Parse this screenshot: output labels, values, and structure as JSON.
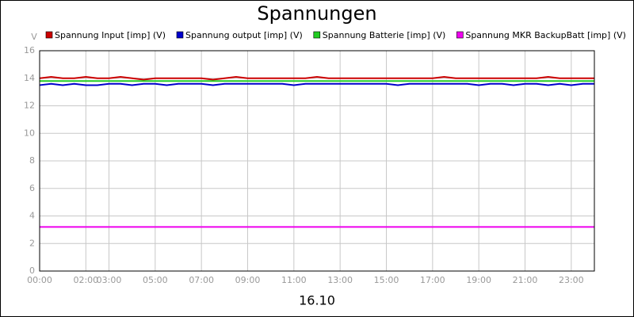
{
  "chart_data": {
    "type": "line",
    "title": "Spannungen",
    "xlabel": "16.10",
    "ylabel": "V",
    "x": [
      0,
      0.5,
      1,
      1.5,
      2,
      2.5,
      3,
      3.5,
      4,
      4.5,
      5,
      5.5,
      6,
      6.5,
      7,
      7.5,
      8,
      8.5,
      9,
      9.5,
      10,
      10.5,
      11,
      11.5,
      12,
      12.5,
      13,
      13.5,
      14,
      14.5,
      15,
      15.5,
      16,
      16.5,
      17,
      17.5,
      18,
      18.5,
      19,
      19.5,
      20,
      20.5,
      21,
      21.5,
      22,
      22.5,
      23,
      23.5,
      24
    ],
    "xlim": [
      0,
      24
    ],
    "xticks": [
      {
        "value": 0,
        "label": "00:00"
      },
      {
        "value": 2,
        "label": "02:00"
      },
      {
        "value": 3,
        "label": "03:00"
      },
      {
        "value": 5,
        "label": "05:00"
      },
      {
        "value": 7,
        "label": "07:00"
      },
      {
        "value": 9,
        "label": "09:00"
      },
      {
        "value": 11,
        "label": "11:00"
      },
      {
        "value": 13,
        "label": "13:00"
      },
      {
        "value": 15,
        "label": "15:00"
      },
      {
        "value": 17,
        "label": "17:00"
      },
      {
        "value": 19,
        "label": "19:00"
      },
      {
        "value": 21,
        "label": "21:00"
      },
      {
        "value": 23,
        "label": "23:00"
      }
    ],
    "ylim": [
      0,
      16
    ],
    "yticks": [
      0,
      2,
      4,
      6,
      8,
      10,
      12,
      14,
      16
    ],
    "grid": true,
    "series": [
      {
        "name": "Spannung Input [imp] (V)",
        "color": "#cc0000",
        "values": [
          14.0,
          14.1,
          14.0,
          14.0,
          14.1,
          14.0,
          14.0,
          14.1,
          14.0,
          13.9,
          14.0,
          14.0,
          14.0,
          14.0,
          14.0,
          13.9,
          14.0,
          14.1,
          14.0,
          14.0,
          14.0,
          14.0,
          14.0,
          14.0,
          14.1,
          14.0,
          14.0,
          14.0,
          14.0,
          14.0,
          14.0,
          14.0,
          14.0,
          14.0,
          14.0,
          14.1,
          14.0,
          14.0,
          14.0,
          14.0,
          14.0,
          14.0,
          14.0,
          14.0,
          14.1,
          14.0,
          14.0,
          14.0,
          14.0
        ]
      },
      {
        "name": "Spannung output [imp] (V)",
        "color": "#0000cc",
        "values": [
          13.5,
          13.6,
          13.5,
          13.6,
          13.5,
          13.5,
          13.6,
          13.6,
          13.5,
          13.6,
          13.6,
          13.5,
          13.6,
          13.6,
          13.6,
          13.5,
          13.6,
          13.6,
          13.6,
          13.6,
          13.6,
          13.6,
          13.5,
          13.6,
          13.6,
          13.6,
          13.6,
          13.6,
          13.6,
          13.6,
          13.6,
          13.5,
          13.6,
          13.6,
          13.6,
          13.6,
          13.6,
          13.6,
          13.5,
          13.6,
          13.6,
          13.5,
          13.6,
          13.6,
          13.5,
          13.6,
          13.5,
          13.6,
          13.6
        ]
      },
      {
        "name": "Spannung Batterie [imp] (V)",
        "color": "#22cc22",
        "values": [
          13.8,
          13.8,
          13.8,
          13.8,
          13.8,
          13.8,
          13.8,
          13.8,
          13.8,
          13.8,
          13.8,
          13.8,
          13.8,
          13.8,
          13.8,
          13.8,
          13.8,
          13.8,
          13.8,
          13.8,
          13.8,
          13.8,
          13.8,
          13.8,
          13.8,
          13.8,
          13.8,
          13.8,
          13.8,
          13.8,
          13.8,
          13.8,
          13.8,
          13.8,
          13.8,
          13.8,
          13.8,
          13.8,
          13.8,
          13.8,
          13.8,
          13.8,
          13.8,
          13.8,
          13.8,
          13.8,
          13.8,
          13.8,
          13.8
        ]
      },
      {
        "name": "Spannung MKR BackupBatt [imp] (V)",
        "color": "#ee00ee",
        "values": [
          3.2,
          3.2,
          3.2,
          3.2,
          3.2,
          3.2,
          3.2,
          3.2,
          3.2,
          3.2,
          3.2,
          3.2,
          3.2,
          3.2,
          3.2,
          3.2,
          3.2,
          3.2,
          3.2,
          3.2,
          3.2,
          3.2,
          3.2,
          3.2,
          3.2,
          3.2,
          3.2,
          3.2,
          3.2,
          3.2,
          3.2,
          3.2,
          3.2,
          3.2,
          3.2,
          3.2,
          3.2,
          3.2,
          3.2,
          3.2,
          3.2,
          3.2,
          3.2,
          3.2,
          3.2,
          3.2,
          3.2,
          3.2,
          3.2
        ]
      }
    ]
  }
}
